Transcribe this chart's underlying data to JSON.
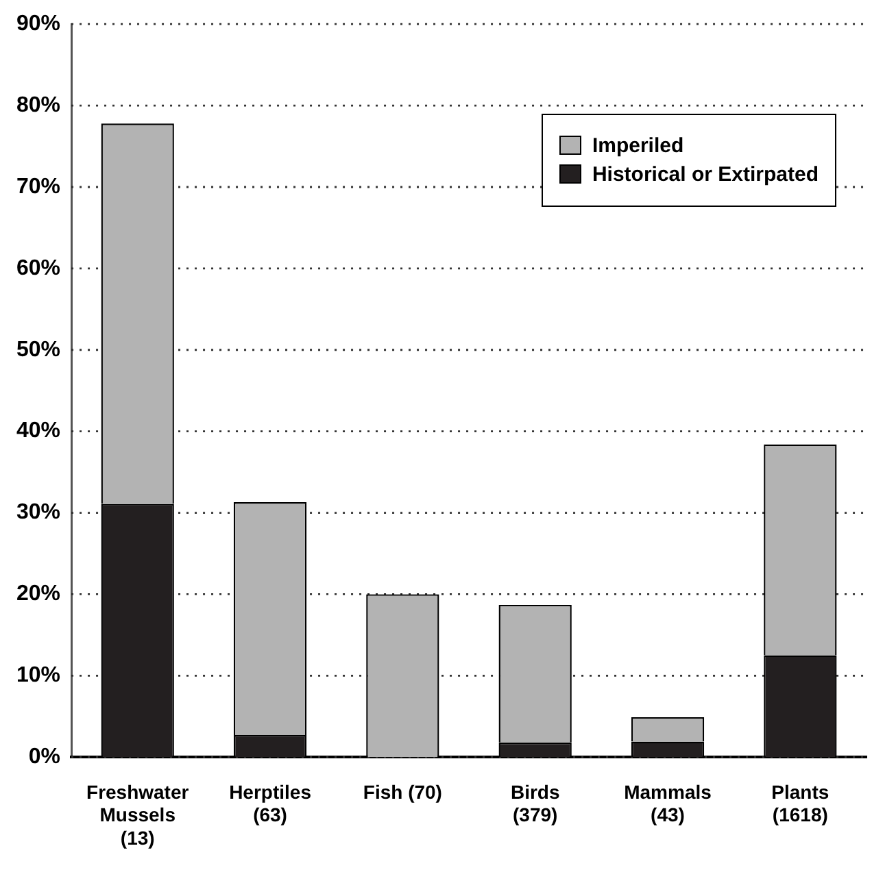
{
  "chart_data": {
    "type": "bar",
    "stacked": true,
    "categories": [
      "Freshwater Mussels (13)",
      "Herptiles (63)",
      "Fish (70)",
      "Birds (379)",
      "Mammals (43)",
      "Plants (1618)"
    ],
    "series": [
      {
        "name": "Historical or Extirpated",
        "color": "#231f20",
        "values": [
          31.1,
          2.7,
          0,
          1.8,
          1.9,
          12.5
        ]
      },
      {
        "name": "Imperiled",
        "color": "#b3b3b3",
        "values": [
          46.7,
          28.6,
          20.0,
          16.9,
          3.0,
          25.9
        ]
      }
    ],
    "ylim": [
      0,
      90
    ],
    "yticks": [
      {
        "value": 0,
        "label": "0%"
      },
      {
        "value": 10,
        "label": "10%"
      },
      {
        "value": 20,
        "label": "20%"
      },
      {
        "value": 30,
        "label": "30%"
      },
      {
        "value": 40,
        "label": "40%"
      },
      {
        "value": 50,
        "label": "50%"
      },
      {
        "value": 60,
        "label": "60%"
      },
      {
        "value": 70,
        "label": "70%"
      },
      {
        "value": 80,
        "label": "80%"
      },
      {
        "value": 90,
        "label": "90%"
      }
    ],
    "grid": "y",
    "legend": "top right"
  }
}
